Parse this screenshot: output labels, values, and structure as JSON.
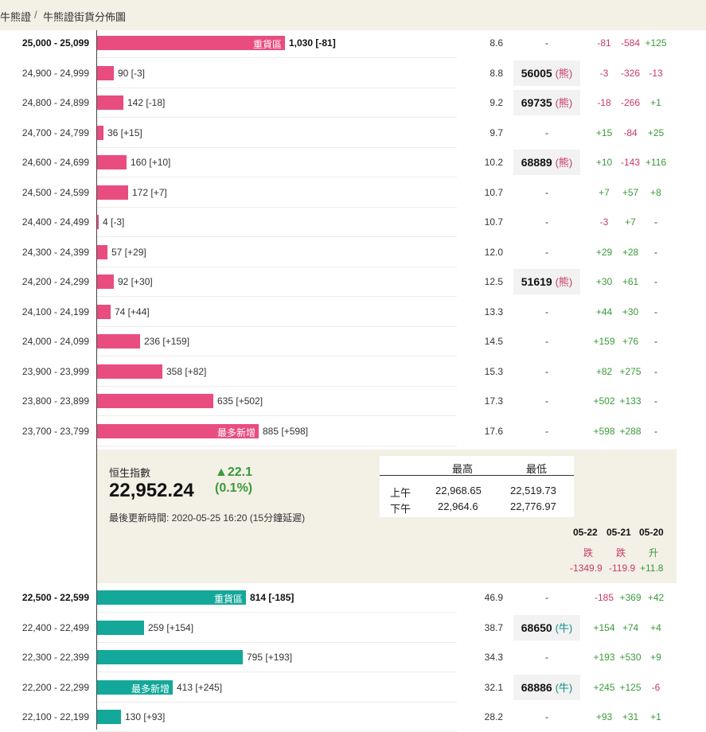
{
  "breadcrumb": {
    "root": "牛熊證",
    "separator": "/",
    "current": "牛熊證街貨分佈圖"
  },
  "bear_rows": [
    {
      "range": "25,000 - 25,099",
      "bold": true,
      "bar": 1030,
      "inlabel": "重貨區",
      "value": "1,030 [-81]",
      "pct": "8.6",
      "code": "",
      "tag": "",
      "chg": [
        "-81",
        "-584",
        "+125"
      ]
    },
    {
      "range": "24,900 - 24,999",
      "bar": 90,
      "value": "90 [-3]",
      "pct": "8.8",
      "code": "56005",
      "tag": "(熊)",
      "chg": [
        "-3",
        "-326",
        "-13"
      ]
    },
    {
      "range": "24,800 - 24,899",
      "bar": 142,
      "value": "142 [-18]",
      "pct": "9.2",
      "code": "69735",
      "tag": "(熊)",
      "chg": [
        "-18",
        "-266",
        "+1"
      ]
    },
    {
      "range": "24,700 - 24,799",
      "bar": 36,
      "value": "36 [+15]",
      "pct": "9.7",
      "code": "",
      "tag": "",
      "chg": [
        "+15",
        "-84",
        "+25"
      ]
    },
    {
      "range": "24,600 - 24,699",
      "bar": 160,
      "value": "160 [+10]",
      "pct": "10.2",
      "code": "68889",
      "tag": "(熊)",
      "chg": [
        "+10",
        "-143",
        "+116"
      ]
    },
    {
      "range": "24,500 - 24,599",
      "bar": 172,
      "value": "172 [+7]",
      "pct": "10.7",
      "code": "",
      "tag": "",
      "chg": [
        "+7",
        "+57",
        "+8"
      ]
    },
    {
      "range": "24,400 - 24,499",
      "bar": 4,
      "value": "4 [-3]",
      "pct": "10.7",
      "code": "",
      "tag": "",
      "chg": [
        "-3",
        "+7",
        "-"
      ]
    },
    {
      "range": "24,300 - 24,399",
      "bar": 57,
      "value": "57 [+29]",
      "pct": "12.0",
      "code": "",
      "tag": "",
      "chg": [
        "+29",
        "+28",
        "-"
      ]
    },
    {
      "range": "24,200 - 24,299",
      "bar": 92,
      "value": "92 [+30]",
      "pct": "12.5",
      "code": "51619",
      "tag": "(熊)",
      "chg": [
        "+30",
        "+61",
        "-"
      ]
    },
    {
      "range": "24,100 - 24,199",
      "bar": 74,
      "value": "74 [+44]",
      "pct": "13.3",
      "code": "",
      "tag": "",
      "chg": [
        "+44",
        "+30",
        "-"
      ]
    },
    {
      "range": "24,000 - 24,099",
      "bar": 236,
      "value": "236 [+159]",
      "pct": "14.5",
      "code": "",
      "tag": "",
      "chg": [
        "+159",
        "+76",
        "-"
      ]
    },
    {
      "range": "23,900 - 23,999",
      "bar": 358,
      "value": "358 [+82]",
      "pct": "15.3",
      "code": "",
      "tag": "",
      "chg": [
        "+82",
        "+275",
        "-"
      ]
    },
    {
      "range": "23,800 - 23,899",
      "bar": 635,
      "value": "635 [+502]",
      "pct": "17.3",
      "code": "",
      "tag": "",
      "chg": [
        "+502",
        "+133",
        "-"
      ]
    },
    {
      "range": "23,700 - 23,799",
      "bar": 885,
      "inlabel": "最多新增",
      "value": "885 [+598]",
      "pct": "17.6",
      "code": "",
      "tag": "",
      "chg": [
        "+598",
        "+288",
        "-"
      ]
    }
  ],
  "index": {
    "name": "恒生指數",
    "value": "22,952.24",
    "change": "▲22.1",
    "change_pct": "(0.1%)",
    "updated": "最後更新時間: 2020-05-25 16:20 (15分鐘延遲)",
    "hl_header_high": "最高",
    "hl_header_low": "最低",
    "am_label": "上午",
    "am_high": "22,968.65",
    "am_low": "22,519.73",
    "pm_label": "下午",
    "pm_high": "22,964.6",
    "pm_low": "22,776.97",
    "dates": [
      "05-22",
      "05-21",
      "05-20"
    ],
    "directions": [
      "跌",
      "跌",
      "升"
    ],
    "day_changes": [
      "-1349.9",
      "-119.9",
      "+11.8"
    ]
  },
  "bull_rows": [
    {
      "range": "22,500 - 22,599",
      "bold": true,
      "bar": 814,
      "inlabel": "重貨區",
      "value": "814 [-185]",
      "pct": "46.9",
      "code": "",
      "tag": "",
      "chg": [
        "-185",
        "+369",
        "+42"
      ]
    },
    {
      "range": "22,400 - 22,499",
      "bar": 259,
      "value": "259 [+154]",
      "pct": "38.7",
      "code": "68650",
      "tag": "(牛)",
      "chg": [
        "+154",
        "+74",
        "+4"
      ]
    },
    {
      "range": "22,300 - 22,399",
      "bar": 795,
      "value": "795 [+193]",
      "pct": "34.3",
      "code": "",
      "tag": "",
      "chg": [
        "+193",
        "+530",
        "+9"
      ]
    },
    {
      "range": "22,200 - 22,299",
      "bar": 413,
      "inlabel": "最多新增",
      "value": "413 [+245]",
      "pct": "32.1",
      "code": "68886",
      "tag": "(牛)",
      "chg": [
        "+245",
        "+125",
        "-6"
      ]
    },
    {
      "range": "22,100 - 22,199",
      "bar": 130,
      "value": "130 [+93]",
      "pct": "28.2",
      "code": "",
      "tag": "",
      "chg": [
        "+93",
        "+31",
        "+1"
      ]
    }
  ],
  "colors": {
    "bear": "#e94d80",
    "bull": "#14a89a",
    "up": "#3a9a3a",
    "down": "#c73a64"
  }
}
